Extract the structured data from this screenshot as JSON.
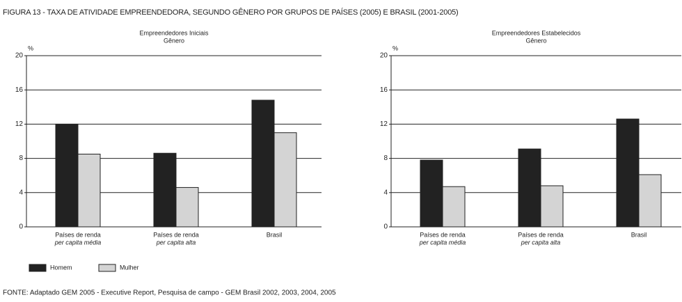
{
  "figure_title": "FIGURA 13 - TAXA DE ATIVIDADE EMPREENDEDORA, SEGUNDO GÊNERO POR GRUPOS DE PAÍSES (2005) E BRASIL (2001-2005)",
  "source": "FONTE: Adaptado GEM 2005 - Executive Report, Pesquisa de campo - GEM Brasil 2002, 2003, 2004, 2005",
  "chart_data": [
    {
      "type": "bar",
      "title": "Empreendedores Iniciais",
      "subtitle": "Gênero",
      "ylabel": "%",
      "categories": [
        [
          "Países de renda",
          "per capita média"
        ],
        [
          "Países de renda",
          "per capita alta"
        ],
        [
          "Brasil"
        ]
      ],
      "series": [
        {
          "name": "Homem",
          "color": "#222222",
          "values": [
            12,
            8.6,
            14.8
          ]
        },
        {
          "name": "Mulher",
          "color": "#d4d4d4",
          "values": [
            8.5,
            4.6,
            11
          ]
        }
      ],
      "ylim": [
        0,
        20
      ],
      "yticks": [
        0,
        4,
        8,
        12,
        16,
        20
      ],
      "grid": true,
      "legend": "bottom-left"
    },
    {
      "type": "bar",
      "title": "Empreendedores Estabelecidos",
      "subtitle": "Gênero",
      "ylabel": "%",
      "categories": [
        [
          "Países de renda",
          "per capita média"
        ],
        [
          "Países de renda",
          "per capita alta"
        ],
        [
          "Brasil"
        ]
      ],
      "series": [
        {
          "color": "#222222",
          "values": [
            7.8,
            9.1,
            12.6
          ]
        },
        {
          "color": "#d4d4d4",
          "values": [
            4.7,
            4.8,
            6.1
          ]
        }
      ],
      "ylim": [
        0,
        20
      ],
      "yticks": [
        0,
        4,
        8,
        12,
        16,
        20
      ],
      "grid": true
    }
  ]
}
